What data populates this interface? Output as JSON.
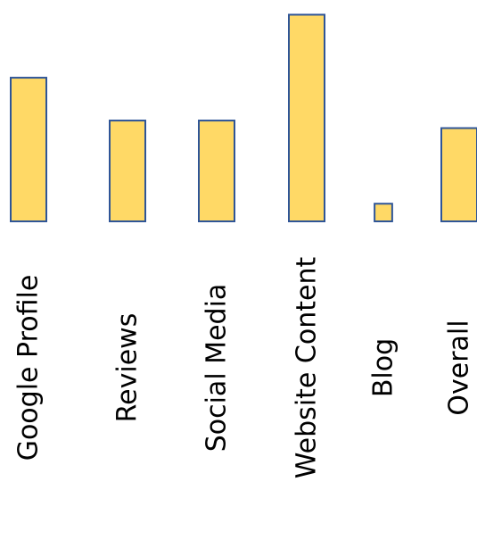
{
  "chart_data": {
    "type": "bar",
    "categories": [
      "Google Profile",
      "Reviews",
      "Social Media",
      "Website Content",
      "Blog",
      "Overall"
    ],
    "values": [
      57,
      40,
      40,
      82,
      7,
      37
    ],
    "ylim": [
      0,
      85
    ],
    "grid": false,
    "legend": "none",
    "colors": {
      "bar_fill": "#FFD966",
      "bar_stroke": "#2F5597"
    }
  }
}
